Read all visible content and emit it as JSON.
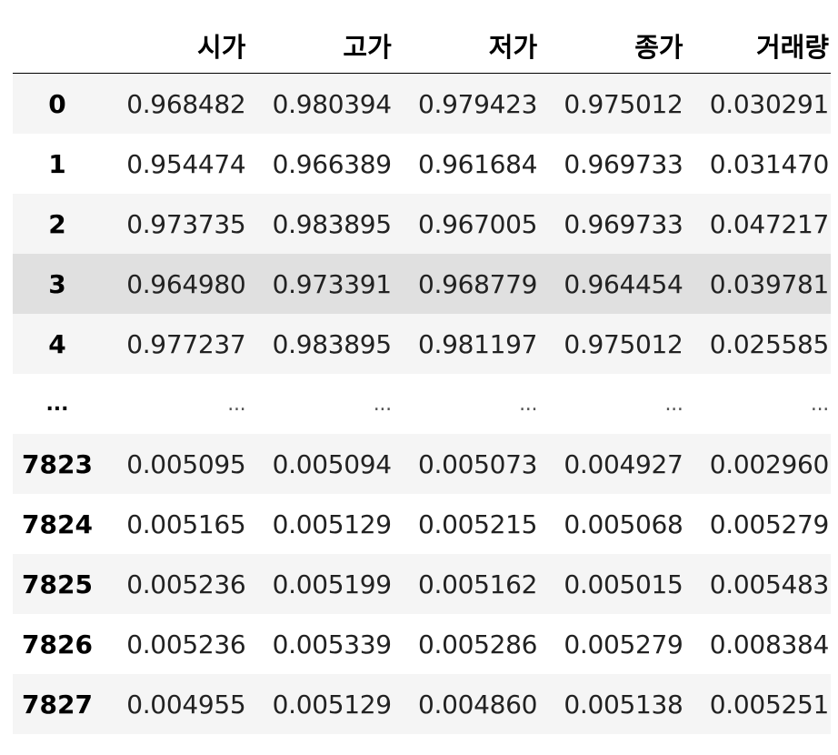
{
  "dataframe": {
    "columns": [
      "시가",
      "고가",
      "저가",
      "종가",
      "거래량"
    ],
    "rows": [
      {
        "index": "0",
        "values": [
          "0.968482",
          "0.980394",
          "0.979423",
          "0.975012",
          "0.030291"
        ]
      },
      {
        "index": "1",
        "values": [
          "0.954474",
          "0.966389",
          "0.961684",
          "0.969733",
          "0.031470"
        ]
      },
      {
        "index": "2",
        "values": [
          "0.973735",
          "0.983895",
          "0.967005",
          "0.969733",
          "0.047217"
        ]
      },
      {
        "index": "3",
        "values": [
          "0.964980",
          "0.973391",
          "0.968779",
          "0.964454",
          "0.039781"
        ]
      },
      {
        "index": "4",
        "values": [
          "0.977237",
          "0.983895",
          "0.981197",
          "0.975012",
          "0.025585"
        ]
      },
      {
        "index": "...",
        "values": [
          "...",
          "...",
          "...",
          "...",
          "..."
        ]
      },
      {
        "index": "7823",
        "values": [
          "0.005095",
          "0.005094",
          "0.005073",
          "0.004927",
          "0.002960"
        ]
      },
      {
        "index": "7824",
        "values": [
          "0.005165",
          "0.005129",
          "0.005215",
          "0.005068",
          "0.005279"
        ]
      },
      {
        "index": "7825",
        "values": [
          "0.005236",
          "0.005199",
          "0.005162",
          "0.005015",
          "0.005483"
        ]
      },
      {
        "index": "7826",
        "values": [
          "0.005236",
          "0.005339",
          "0.005286",
          "0.005279",
          "0.008384"
        ]
      },
      {
        "index": "7827",
        "values": [
          "0.004955",
          "0.005129",
          "0.004860",
          "0.005138",
          "0.005251"
        ]
      }
    ]
  },
  "colors": {
    "striped_row": "#f5f5f5",
    "hovered_row": "#e0e0e0",
    "header_border": "#000000"
  }
}
